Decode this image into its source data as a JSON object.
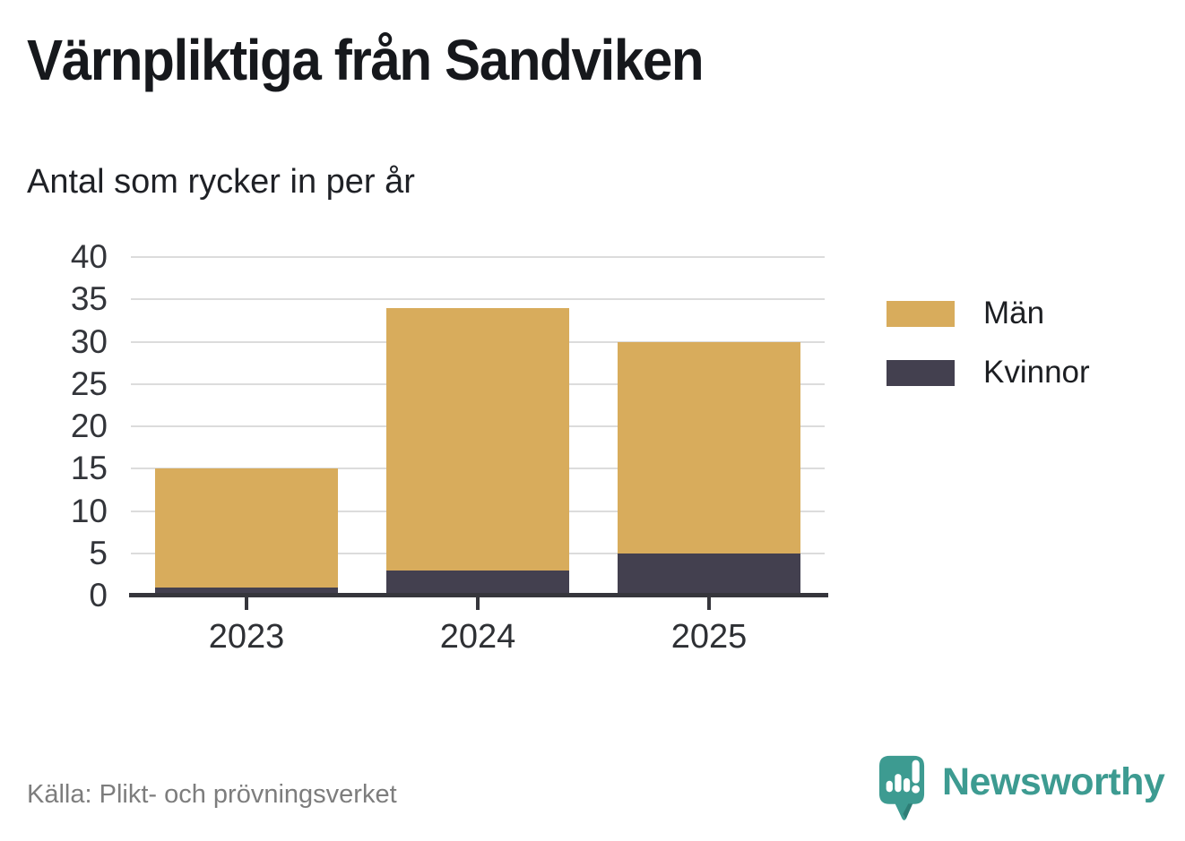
{
  "header": {
    "title": "Värnpliktiga från Sandviken",
    "subtitle": "Antal som rycker in per år"
  },
  "chart_data": {
    "type": "bar",
    "stacked": true,
    "title": "Värnpliktiga från Sandviken",
    "subtitle": "Antal som rycker in per år",
    "categories": [
      "2023",
      "2024",
      "2025"
    ],
    "series": [
      {
        "name": "Män",
        "color": "#D8AC5C",
        "values": [
          14,
          31,
          25
        ]
      },
      {
        "name": "Kvinnor",
        "color": "#43404F",
        "values": [
          1,
          3,
          5
        ]
      }
    ],
    "stack_bottom_to_top": [
      "Kvinnor",
      "Män"
    ],
    "totals": [
      15,
      34,
      30
    ],
    "xlabel": "",
    "ylabel": "",
    "ylim": [
      0,
      40
    ],
    "yticks": [
      0,
      5,
      10,
      15,
      20,
      25,
      30,
      35,
      40
    ],
    "grid": true,
    "legend_position": "right"
  },
  "colors": {
    "men": "#D8AC5C",
    "women": "#43404F",
    "gridline": "#dcdcdc",
    "axis": "#36363c",
    "teal": "#3D9B91",
    "teal_dark": "#2E7E76"
  },
  "footer": {
    "source": "Källa: Plikt- och prövningsverket",
    "brand": "Newsworthy"
  }
}
